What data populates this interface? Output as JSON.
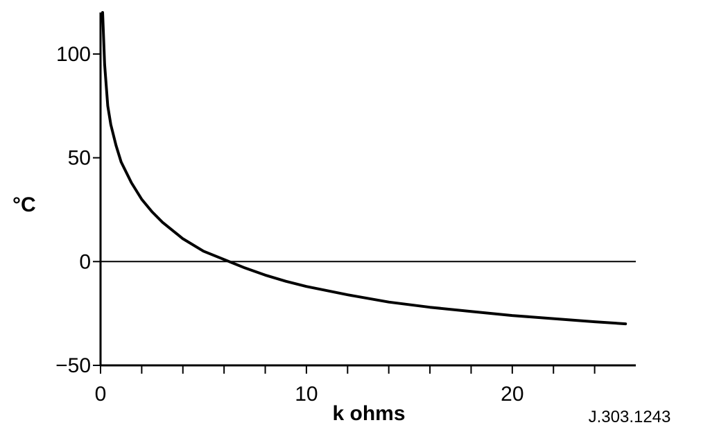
{
  "chart_data": {
    "type": "line",
    "title": "",
    "xlabel": "k ohms",
    "ylabel": "°C",
    "figure_code": "J.303.1243",
    "xlim": [
      0,
      26
    ],
    "ylim": [
      -50,
      120
    ],
    "x_ticks": [
      0,
      10,
      20
    ],
    "y_ticks": [
      -50,
      0,
      50,
      100
    ],
    "x_minor_ticks": [
      2,
      4,
      6,
      8,
      12,
      14,
      16,
      18,
      22,
      24
    ],
    "grid": false,
    "reference_line_y": 0,
    "series": [
      {
        "x": [
          0.1,
          0.2,
          0.35,
          0.5,
          0.75,
          1,
          1.5,
          2,
          2.5,
          3,
          4,
          5,
          6,
          6.5,
          7,
          8,
          9,
          10,
          12,
          14,
          16,
          18,
          20,
          22,
          24,
          25.5
        ],
        "values": [
          120,
          95,
          75,
          66,
          56,
          48,
          38,
          30,
          24,
          19,
          11,
          5,
          1,
          -1,
          -3,
          -6.5,
          -9.5,
          -12,
          -16,
          -19.5,
          -22,
          -24,
          -26,
          -27.5,
          -29,
          -30
        ]
      }
    ]
  }
}
